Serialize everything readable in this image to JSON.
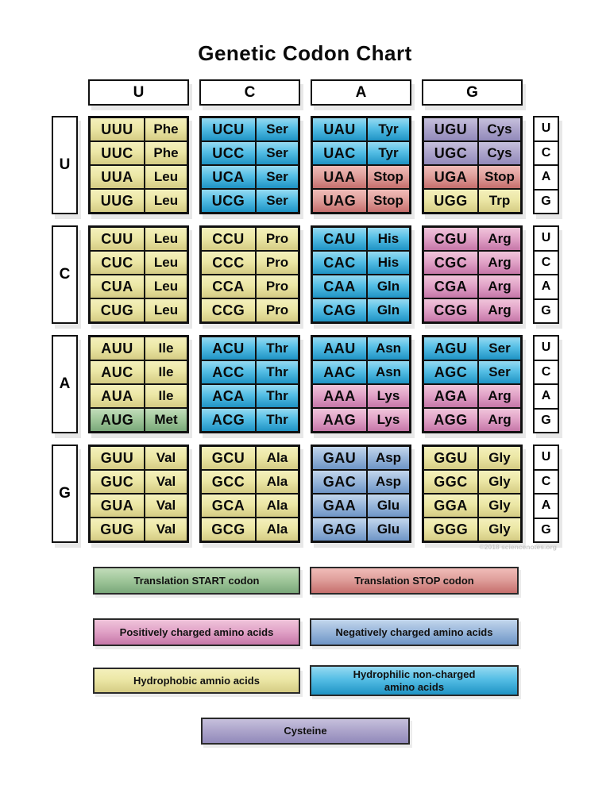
{
  "title": "Genetic Codon Chart",
  "watermark": "©2018 sciencenotes.org",
  "second_base_headers": [
    "U",
    "C",
    "A",
    "G"
  ],
  "third_base_labels": [
    "U",
    "C",
    "A",
    "G"
  ],
  "colors": {
    "start_green": "#9cc79a",
    "stop_red": "#dd9a97",
    "positive_pink": "#dfa0c5",
    "negative_blue": "#8aabd3",
    "hydrophobic_yellow": "#ece7a6",
    "hydrophilic_cyan": "#46b5e1",
    "cysteine_purple": "#aaa2cb"
  },
  "rows": [
    {
      "label": "U",
      "blocks": [
        [
          {
            "codon": "UUU",
            "aa": "Phe",
            "cat": "hydrophobic"
          },
          {
            "codon": "UUC",
            "aa": "Phe",
            "cat": "hydrophobic"
          },
          {
            "codon": "UUA",
            "aa": "Leu",
            "cat": "hydrophobic"
          },
          {
            "codon": "UUG",
            "aa": "Leu",
            "cat": "hydrophobic"
          }
        ],
        [
          {
            "codon": "UCU",
            "aa": "Ser",
            "cat": "hydrophilic"
          },
          {
            "codon": "UCC",
            "aa": "Ser",
            "cat": "hydrophilic"
          },
          {
            "codon": "UCA",
            "aa": "Ser",
            "cat": "hydrophilic"
          },
          {
            "codon": "UCG",
            "aa": "Ser",
            "cat": "hydrophilic"
          }
        ],
        [
          {
            "codon": "UAU",
            "aa": "Tyr",
            "cat": "hydrophilic"
          },
          {
            "codon": "UAC",
            "aa": "Tyr",
            "cat": "hydrophilic"
          },
          {
            "codon": "UAA",
            "aa": "Stop",
            "cat": "stop"
          },
          {
            "codon": "UAG",
            "aa": "Stop",
            "cat": "stop"
          }
        ],
        [
          {
            "codon": "UGU",
            "aa": "Cys",
            "cat": "cysteine"
          },
          {
            "codon": "UGC",
            "aa": "Cys",
            "cat": "cysteine"
          },
          {
            "codon": "UGA",
            "aa": "Stop",
            "cat": "stop"
          },
          {
            "codon": "UGG",
            "aa": "Trp",
            "cat": "hydrophobic"
          }
        ]
      ]
    },
    {
      "label": "C",
      "blocks": [
        [
          {
            "codon": "CUU",
            "aa": "Leu",
            "cat": "hydrophobic"
          },
          {
            "codon": "CUC",
            "aa": "Leu",
            "cat": "hydrophobic"
          },
          {
            "codon": "CUA",
            "aa": "Leu",
            "cat": "hydrophobic"
          },
          {
            "codon": "CUG",
            "aa": "Leu",
            "cat": "hydrophobic"
          }
        ],
        [
          {
            "codon": "CCU",
            "aa": "Pro",
            "cat": "hydrophobic"
          },
          {
            "codon": "CCC",
            "aa": "Pro",
            "cat": "hydrophobic"
          },
          {
            "codon": "CCA",
            "aa": "Pro",
            "cat": "hydrophobic"
          },
          {
            "codon": "CCG",
            "aa": "Pro",
            "cat": "hydrophobic"
          }
        ],
        [
          {
            "codon": "CAU",
            "aa": "His",
            "cat": "hydrophilic"
          },
          {
            "codon": "CAC",
            "aa": "His",
            "cat": "hydrophilic"
          },
          {
            "codon": "CAA",
            "aa": "Gln",
            "cat": "hydrophilic"
          },
          {
            "codon": "CAG",
            "aa": "Gln",
            "cat": "hydrophilic"
          }
        ],
        [
          {
            "codon": "CGU",
            "aa": "Arg",
            "cat": "positive"
          },
          {
            "codon": "CGC",
            "aa": "Arg",
            "cat": "positive"
          },
          {
            "codon": "CGA",
            "aa": "Arg",
            "cat": "positive"
          },
          {
            "codon": "CGG",
            "aa": "Arg",
            "cat": "positive"
          }
        ]
      ]
    },
    {
      "label": "A",
      "blocks": [
        [
          {
            "codon": "AUU",
            "aa": "Ile",
            "cat": "hydrophobic"
          },
          {
            "codon": "AUC",
            "aa": "Ile",
            "cat": "hydrophobic"
          },
          {
            "codon": "AUA",
            "aa": "Ile",
            "cat": "hydrophobic"
          },
          {
            "codon": "AUG",
            "aa": "Met",
            "cat": "start"
          }
        ],
        [
          {
            "codon": "ACU",
            "aa": "Thr",
            "cat": "hydrophilic"
          },
          {
            "codon": "ACC",
            "aa": "Thr",
            "cat": "hydrophilic"
          },
          {
            "codon": "ACA",
            "aa": "Thr",
            "cat": "hydrophilic"
          },
          {
            "codon": "ACG",
            "aa": "Thr",
            "cat": "hydrophilic"
          }
        ],
        [
          {
            "codon": "AAU",
            "aa": "Asn",
            "cat": "hydrophilic"
          },
          {
            "codon": "AAC",
            "aa": "Asn",
            "cat": "hydrophilic"
          },
          {
            "codon": "AAA",
            "aa": "Lys",
            "cat": "positive"
          },
          {
            "codon": "AAG",
            "aa": "Lys",
            "cat": "positive"
          }
        ],
        [
          {
            "codon": "AGU",
            "aa": "Ser",
            "cat": "hydrophilic"
          },
          {
            "codon": "AGC",
            "aa": "Ser",
            "cat": "hydrophilic"
          },
          {
            "codon": "AGA",
            "aa": "Arg",
            "cat": "positive"
          },
          {
            "codon": "AGG",
            "aa": "Arg",
            "cat": "positive"
          }
        ]
      ]
    },
    {
      "label": "G",
      "blocks": [
        [
          {
            "codon": "GUU",
            "aa": "Val",
            "cat": "hydrophobic"
          },
          {
            "codon": "GUC",
            "aa": "Val",
            "cat": "hydrophobic"
          },
          {
            "codon": "GUA",
            "aa": "Val",
            "cat": "hydrophobic"
          },
          {
            "codon": "GUG",
            "aa": "Val",
            "cat": "hydrophobic"
          }
        ],
        [
          {
            "codon": "GCU",
            "aa": "Ala",
            "cat": "hydrophobic"
          },
          {
            "codon": "GCC",
            "aa": "Ala",
            "cat": "hydrophobic"
          },
          {
            "codon": "GCA",
            "aa": "Ala",
            "cat": "hydrophobic"
          },
          {
            "codon": "GCG",
            "aa": "Ala",
            "cat": "hydrophobic"
          }
        ],
        [
          {
            "codon": "GAU",
            "aa": "Asp",
            "cat": "negative"
          },
          {
            "codon": "GAC",
            "aa": "Asp",
            "cat": "negative"
          },
          {
            "codon": "GAA",
            "aa": "Glu",
            "cat": "negative"
          },
          {
            "codon": "GAG",
            "aa": "Glu",
            "cat": "negative"
          }
        ],
        [
          {
            "codon": "GGU",
            "aa": "Gly",
            "cat": "hydrophobic"
          },
          {
            "codon": "GGC",
            "aa": "Gly",
            "cat": "hydrophobic"
          },
          {
            "codon": "GGA",
            "aa": "Gly",
            "cat": "hydrophobic"
          },
          {
            "codon": "GGG",
            "aa": "Gly",
            "cat": "hydrophobic"
          }
        ]
      ]
    }
  ],
  "legend": [
    {
      "key": "start",
      "label": "Translation START codon"
    },
    {
      "key": "stop",
      "label": "Translation STOP codon"
    },
    {
      "key": "positive",
      "label": "Positively charged amino acids"
    },
    {
      "key": "negative",
      "label": "Negatively charged amino acids"
    },
    {
      "key": "hydrophobic",
      "label": "Hydrophobic amnio acids"
    },
    {
      "key": "hydrophilic",
      "label": "Hydrophilic non-charged\namino acids"
    },
    {
      "key": "cysteine",
      "label": "Cysteine"
    }
  ]
}
